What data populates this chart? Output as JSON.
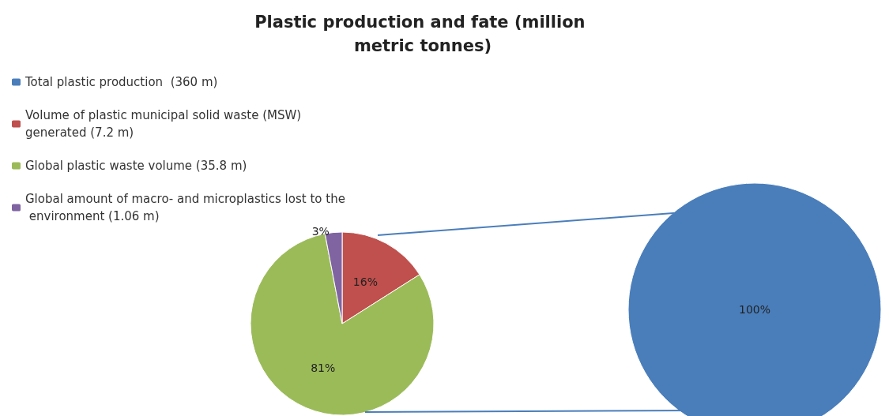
{
  "chart_data": {
    "type": "pie",
    "title": "Plastic production and fate (million metric tonnes)",
    "categories": [
      "Total plastic production  (360 m)",
      "Volume of plastic municipal solid waste (MSW) generated (7.2 m)",
      "Global plastic waste volume (35.8 m)",
      "Global amount of macro- and microplastics lost to the environment (1.06 m)"
    ],
    "colors": [
      "#4a7ebb",
      "#c0504d",
      "#9bbb59",
      "#8064a2"
    ],
    "series": [
      {
        "values": [
          100,
          null,
          null,
          null
        ],
        "value_labels": [
          "100%",
          null,
          null,
          null
        ]
      },
      {
        "values": [
          null,
          16,
          81,
          3
        ],
        "value_labels": [
          null,
          "16%",
          "81%",
          "3%"
        ]
      }
    ],
    "legend": "top left"
  }
}
